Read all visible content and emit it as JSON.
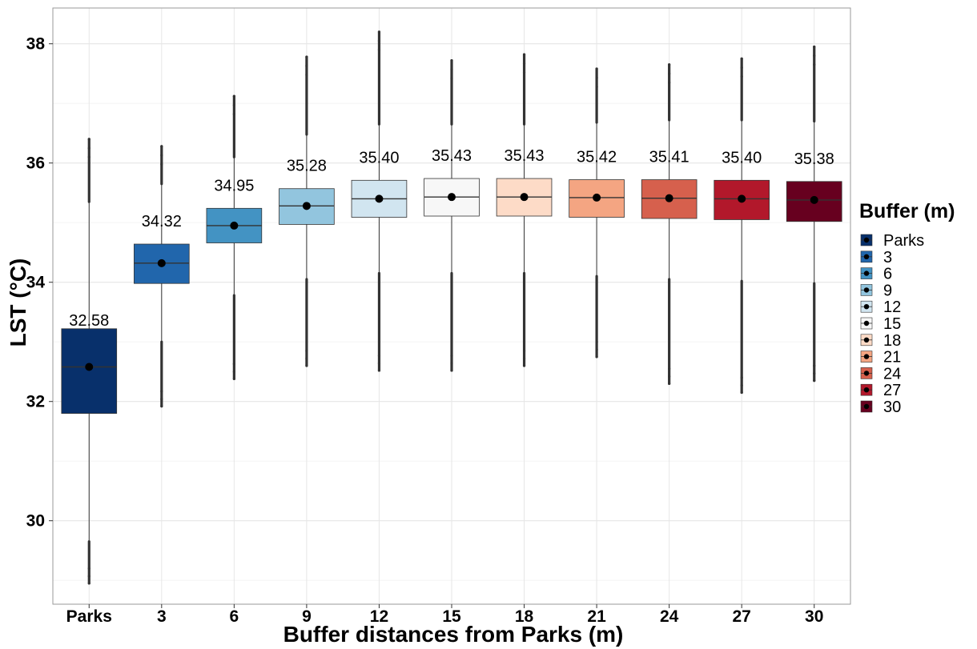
{
  "chart_data": {
    "type": "box",
    "xlabel": "Buffer distances from Parks (m)",
    "ylabel": "LST (°C)",
    "ylim": [
      28.6,
      38.6
    ],
    "yticks": [
      30,
      32,
      34,
      36,
      38
    ],
    "grid": true,
    "legend": {
      "title": "Buffer (m)",
      "placement": "right",
      "entries": [
        "Parks",
        "3",
        "6",
        "9",
        "12",
        "15",
        "18",
        "21",
        "24",
        "27",
        "30"
      ]
    },
    "categories": [
      "Parks",
      "3",
      "6",
      "9",
      "12",
      "15",
      "18",
      "21",
      "24",
      "27",
      "30"
    ],
    "colors": [
      "#08306b",
      "#2166ac",
      "#4393c3",
      "#92c5de",
      "#d1e5f0",
      "#f7f7f7",
      "#fddbc7",
      "#f4a582",
      "#d6604d",
      "#b2182b",
      "#67001f"
    ],
    "boxes": [
      {
        "name": "Parks",
        "q1": 31.8,
        "median": 32.58,
        "q3": 33.22,
        "whisker_low": 29.65,
        "whisker_high": 35.35,
        "outlier_min": 28.95,
        "outlier_max": 36.4,
        "mean": 32.58,
        "mean_label": "32.58"
      },
      {
        "name": "3",
        "q1": 33.98,
        "median": 34.32,
        "q3": 34.64,
        "whisker_low": 33.0,
        "whisker_high": 35.65,
        "outlier_min": 31.92,
        "outlier_max": 36.28,
        "mean": 34.32,
        "mean_label": "34.32"
      },
      {
        "name": "6",
        "q1": 34.66,
        "median": 34.95,
        "q3": 35.24,
        "whisker_low": 33.78,
        "whisker_high": 36.1,
        "outlier_min": 32.38,
        "outlier_max": 37.12,
        "mean": 34.95,
        "mean_label": "34.95"
      },
      {
        "name": "9",
        "q1": 34.97,
        "median": 35.28,
        "q3": 35.57,
        "whisker_low": 34.05,
        "whisker_high": 36.48,
        "outlier_min": 32.6,
        "outlier_max": 37.78,
        "mean": 35.28,
        "mean_label": "35.28"
      },
      {
        "name": "12",
        "q1": 35.09,
        "median": 35.4,
        "q3": 35.71,
        "whisker_low": 34.15,
        "whisker_high": 36.65,
        "outlier_min": 32.52,
        "outlier_max": 38.2,
        "mean": 35.4,
        "mean_label": "35.40"
      },
      {
        "name": "15",
        "q1": 35.11,
        "median": 35.43,
        "q3": 35.74,
        "whisker_low": 34.15,
        "whisker_high": 36.65,
        "outlier_min": 32.52,
        "outlier_max": 37.72,
        "mean": 35.43,
        "mean_label": "35.43"
      },
      {
        "name": "18",
        "q1": 35.11,
        "median": 35.43,
        "q3": 35.74,
        "whisker_low": 34.15,
        "whisker_high": 36.65,
        "outlier_min": 32.6,
        "outlier_max": 37.82,
        "mean": 35.43,
        "mean_label": "35.43"
      },
      {
        "name": "21",
        "q1": 35.09,
        "median": 35.42,
        "q3": 35.72,
        "whisker_low": 34.1,
        "whisker_high": 36.68,
        "outlier_min": 32.75,
        "outlier_max": 37.58,
        "mean": 35.42,
        "mean_label": "35.42"
      },
      {
        "name": "24",
        "q1": 35.07,
        "median": 35.41,
        "q3": 35.72,
        "whisker_low": 34.05,
        "whisker_high": 36.72,
        "outlier_min": 32.3,
        "outlier_max": 37.65,
        "mean": 35.41,
        "mean_label": "35.41"
      },
      {
        "name": "27",
        "q1": 35.05,
        "median": 35.4,
        "q3": 35.71,
        "whisker_low": 34.02,
        "whisker_high": 36.72,
        "outlier_min": 32.15,
        "outlier_max": 37.75,
        "mean": 35.4,
        "mean_label": "35.40"
      },
      {
        "name": "30",
        "q1": 35.02,
        "median": 35.38,
        "q3": 35.69,
        "whisker_low": 33.98,
        "whisker_high": 36.7,
        "outlier_min": 32.35,
        "outlier_max": 37.95,
        "mean": 35.38,
        "mean_label": "35.38"
      }
    ]
  }
}
